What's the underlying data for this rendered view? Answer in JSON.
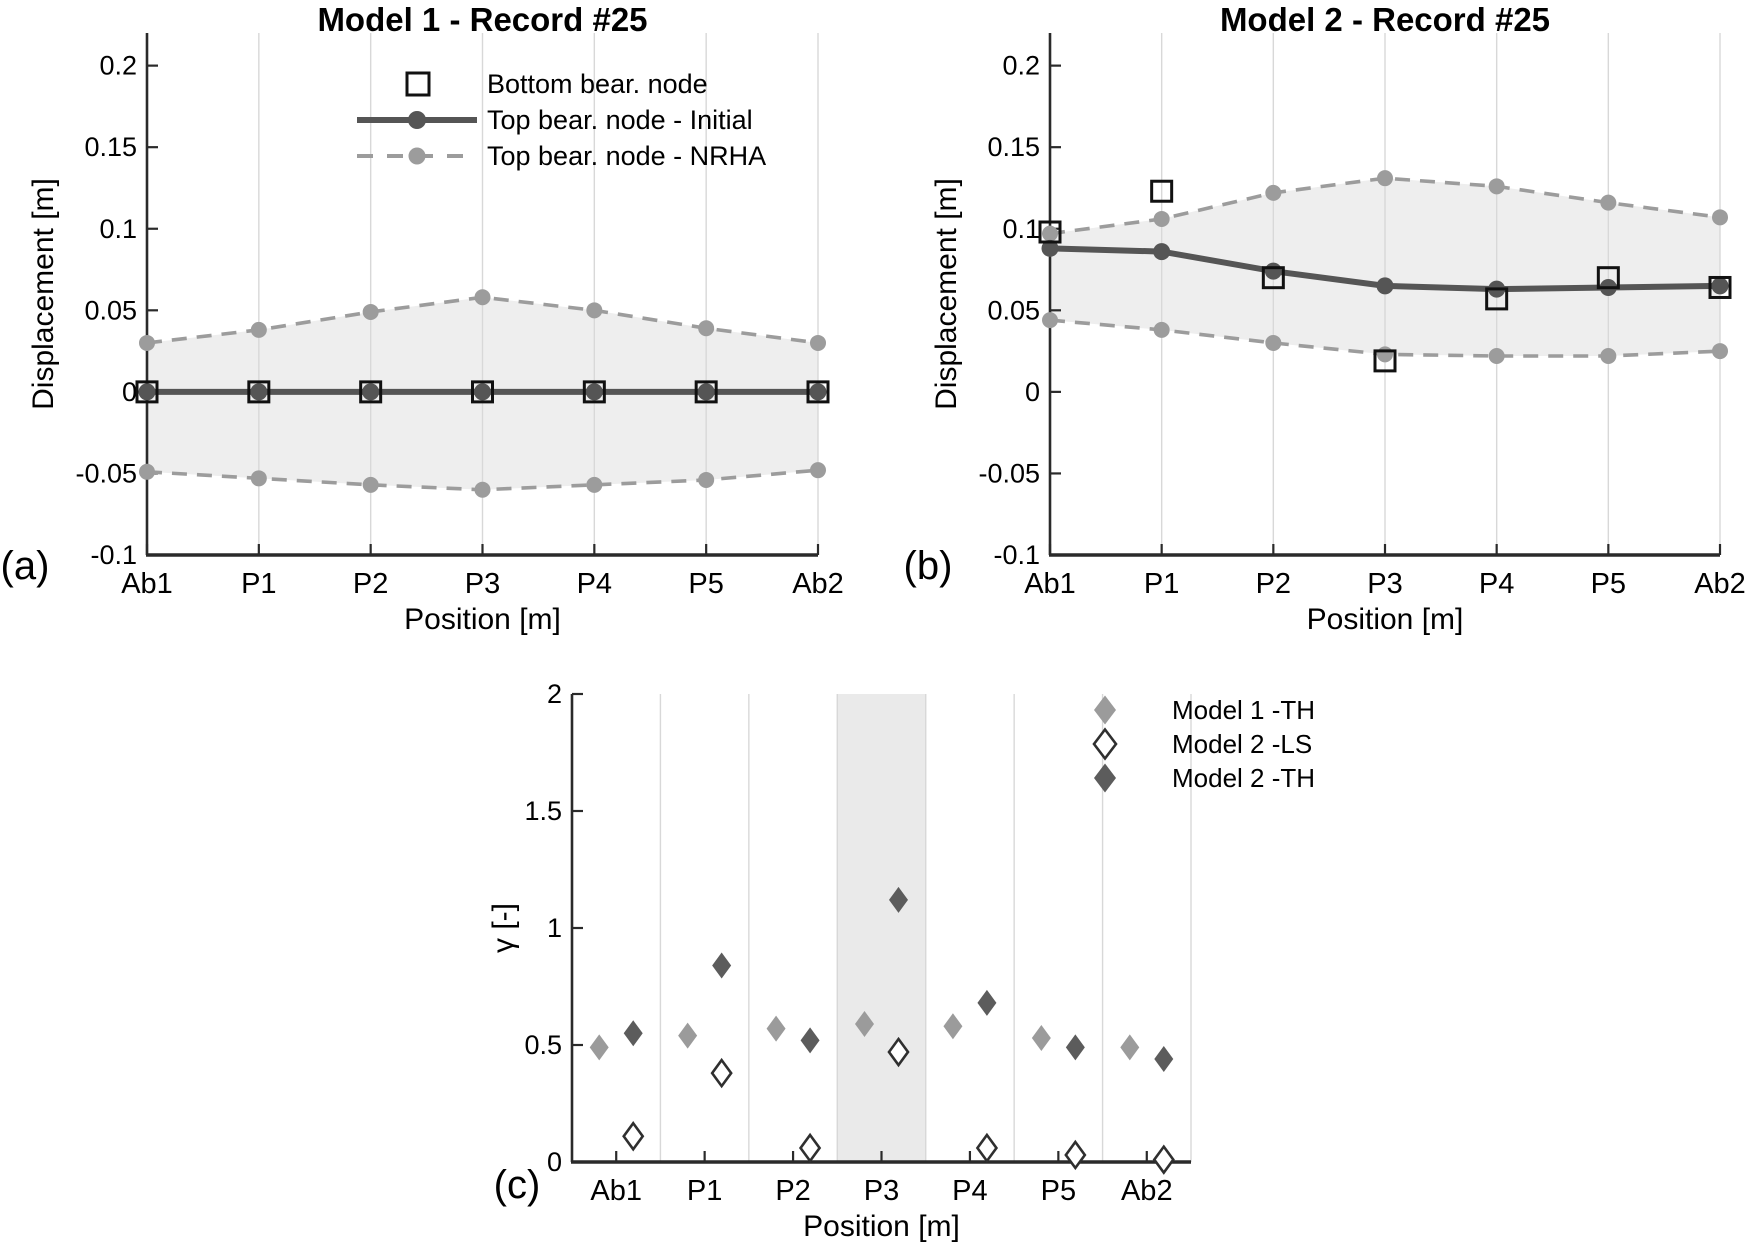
{
  "figure": {
    "panel_labels": {
      "a": "(a)",
      "b": "(b)",
      "c": "(c)"
    }
  },
  "colors": {
    "background": "#ffffff",
    "dark_line": "#555555",
    "nrha_gray": "#9c9c9c",
    "band": "#eeeeee",
    "band_c": "#eaeaea",
    "grid": "#d8d8d8",
    "axis": "#2a2a2a",
    "square_stroke": "#111111",
    "diamond_light": "#9b9b9b",
    "diamond_dark": "#5c5c5c",
    "diamond_open_stroke": "#2f2f2f",
    "text": "#000000"
  },
  "chart_data": [
    {
      "id": "a",
      "type": "line",
      "title": "Model 1 - Record #25",
      "xlabel": "Position [m]",
      "ylabel": "Displacement [m]",
      "categories": [
        "Ab1",
        "P1",
        "P2",
        "P3",
        "P4",
        "P5",
        "Ab2"
      ],
      "ylim": [
        -0.1,
        0.22
      ],
      "yticks": [
        -0.1,
        -0.05,
        0,
        0.05,
        0.1,
        0.15,
        0.2
      ],
      "ytick_labels": [
        "-0.1",
        "-0.05",
        "0",
        "0.05",
        "0.1",
        "0.15",
        "0.2"
      ],
      "grid": "vertical",
      "legend": {
        "position": "top-center-inside",
        "entries": [
          {
            "label": "Bottom bear. node",
            "marker": "open-square"
          },
          {
            "label": "Top bear. node - Initial",
            "marker": "solid-line-filled-circle"
          },
          {
            "label": "Top bear. node - NRHA",
            "marker": "dashed-line-filled-circle"
          }
        ]
      },
      "series": [
        {
          "name": "Bottom bear. node",
          "role": "squares",
          "values": [
            0,
            0,
            0,
            0,
            0,
            0,
            0
          ]
        },
        {
          "name": "Top bear. node - Initial",
          "role": "initial",
          "values": [
            0,
            0,
            0,
            0,
            0,
            0,
            0
          ]
        },
        {
          "name": "Top bear. node - NRHA (upper envelope)",
          "role": "upper",
          "values": [
            0.03,
            0.038,
            0.049,
            0.058,
            0.05,
            0.039,
            0.03
          ]
        },
        {
          "name": "Top bear. node - NRHA (lower envelope)",
          "role": "lower",
          "values": [
            -0.049,
            -0.053,
            -0.057,
            -0.06,
            -0.057,
            -0.054,
            -0.048
          ]
        }
      ]
    },
    {
      "id": "b",
      "type": "line",
      "title": "Model 2 - Record #25",
      "xlabel": "Position [m]",
      "ylabel": "Displacement [m]",
      "categories": [
        "Ab1",
        "P1",
        "P2",
        "P3",
        "P4",
        "P5",
        "Ab2"
      ],
      "ylim": [
        -0.1,
        0.22
      ],
      "yticks": [
        -0.1,
        -0.05,
        0,
        0.05,
        0.1,
        0.15,
        0.2
      ],
      "ytick_labels": [
        "-0.1",
        "-0.05",
        "0",
        "0.05",
        "0.1",
        "0.15",
        "0.2"
      ],
      "grid": "vertical",
      "series": [
        {
          "name": "Bottom bear. node",
          "role": "squares",
          "values": [
            0.098,
            0.123,
            0.07,
            0.019,
            0.057,
            0.07,
            0.064
          ]
        },
        {
          "name": "Top bear. node - Initial",
          "role": "initial",
          "values": [
            0.088,
            0.086,
            0.074,
            0.065,
            0.063,
            0.064,
            0.065
          ]
        },
        {
          "name": "Top bear. node - NRHA (upper envelope)",
          "role": "upper",
          "values": [
            0.097,
            0.106,
            0.122,
            0.131,
            0.126,
            0.116,
            0.107
          ]
        },
        {
          "name": "Top bear. node - NRHA (lower envelope)",
          "role": "lower",
          "values": [
            0.044,
            0.038,
            0.03,
            0.023,
            0.022,
            0.022,
            0.025
          ]
        }
      ]
    },
    {
      "id": "c",
      "type": "scatter",
      "title": "",
      "xlabel": "Position [m]",
      "ylabel": "γ [-]",
      "categories": [
        "Ab1",
        "P1",
        "P2",
        "P3",
        "P4",
        "P5",
        "Ab2"
      ],
      "ylim": [
        0,
        2
      ],
      "yticks": [
        0,
        0.5,
        1,
        1.5,
        2
      ],
      "ytick_labels": [
        "0",
        "0.5",
        "1",
        "1.5",
        "2"
      ],
      "grid": "vertical-between-categories",
      "highlight_category": "P3",
      "legend": {
        "position": "top-right",
        "entries": [
          {
            "label": "Model 1 -TH",
            "marker": "diamond-light"
          },
          {
            "label": "Model 2 -LS",
            "marker": "diamond-open"
          },
          {
            "label": "Model 2 -TH",
            "marker": "diamond-dark"
          }
        ]
      },
      "series": [
        {
          "name": "Model 1 -TH",
          "marker": "diamond-light",
          "values": [
            0.49,
            0.54,
            0.57,
            0.59,
            0.58,
            0.53,
            0.49
          ]
        },
        {
          "name": "Model 2 -LS",
          "marker": "diamond-open",
          "values": [
            0.11,
            0.38,
            0.06,
            0.47,
            0.06,
            0.03,
            0.01
          ]
        },
        {
          "name": "Model 2 -TH",
          "marker": "diamond-dark",
          "values": [
            0.55,
            0.84,
            0.52,
            1.12,
            0.68,
            0.49,
            0.44
          ]
        }
      ]
    }
  ]
}
